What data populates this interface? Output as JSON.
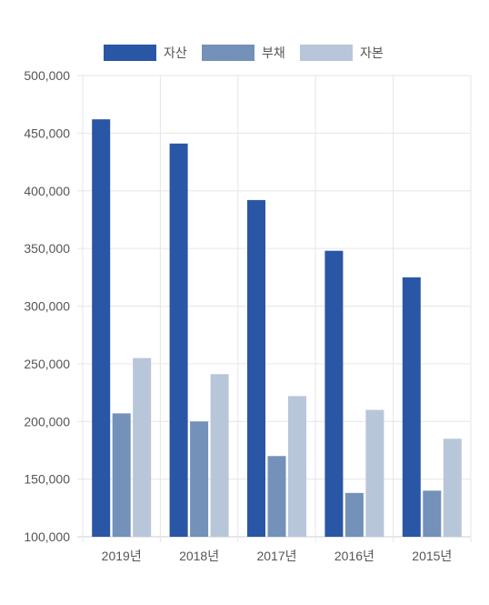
{
  "chart_data": {
    "type": "bar",
    "categories": [
      "2019년",
      "2018년",
      "2017년",
      "2016년",
      "2015년"
    ],
    "series": [
      {
        "name": "자산",
        "color": "#2a56a6",
        "values": [
          462000,
          441000,
          392000,
          348000,
          325000
        ]
      },
      {
        "name": "부채",
        "color": "#7391b9",
        "values": [
          207000,
          200000,
          170000,
          138000,
          140000
        ]
      },
      {
        "name": "자본",
        "color": "#b8c6da",
        "values": [
          255000,
          241000,
          222000,
          210000,
          185000
        ]
      }
    ],
    "yticks": [
      {
        "value": 100000,
        "label": "100,000"
      },
      {
        "value": 150000,
        "label": "150,000"
      },
      {
        "value": 200000,
        "label": "200,000"
      },
      {
        "value": 250000,
        "label": "250,000"
      },
      {
        "value": 300000,
        "label": "300,000"
      },
      {
        "value": 350000,
        "label": "350,000"
      },
      {
        "value": 400000,
        "label": "400,000"
      },
      {
        "value": 450000,
        "label": "450,000"
      },
      {
        "value": 500000,
        "label": "500,000"
      }
    ],
    "ylim": [
      100000,
      500000
    ],
    "grid": true,
    "legend_position": "top-center",
    "title": "",
    "xlabel": "",
    "ylabel": ""
  }
}
